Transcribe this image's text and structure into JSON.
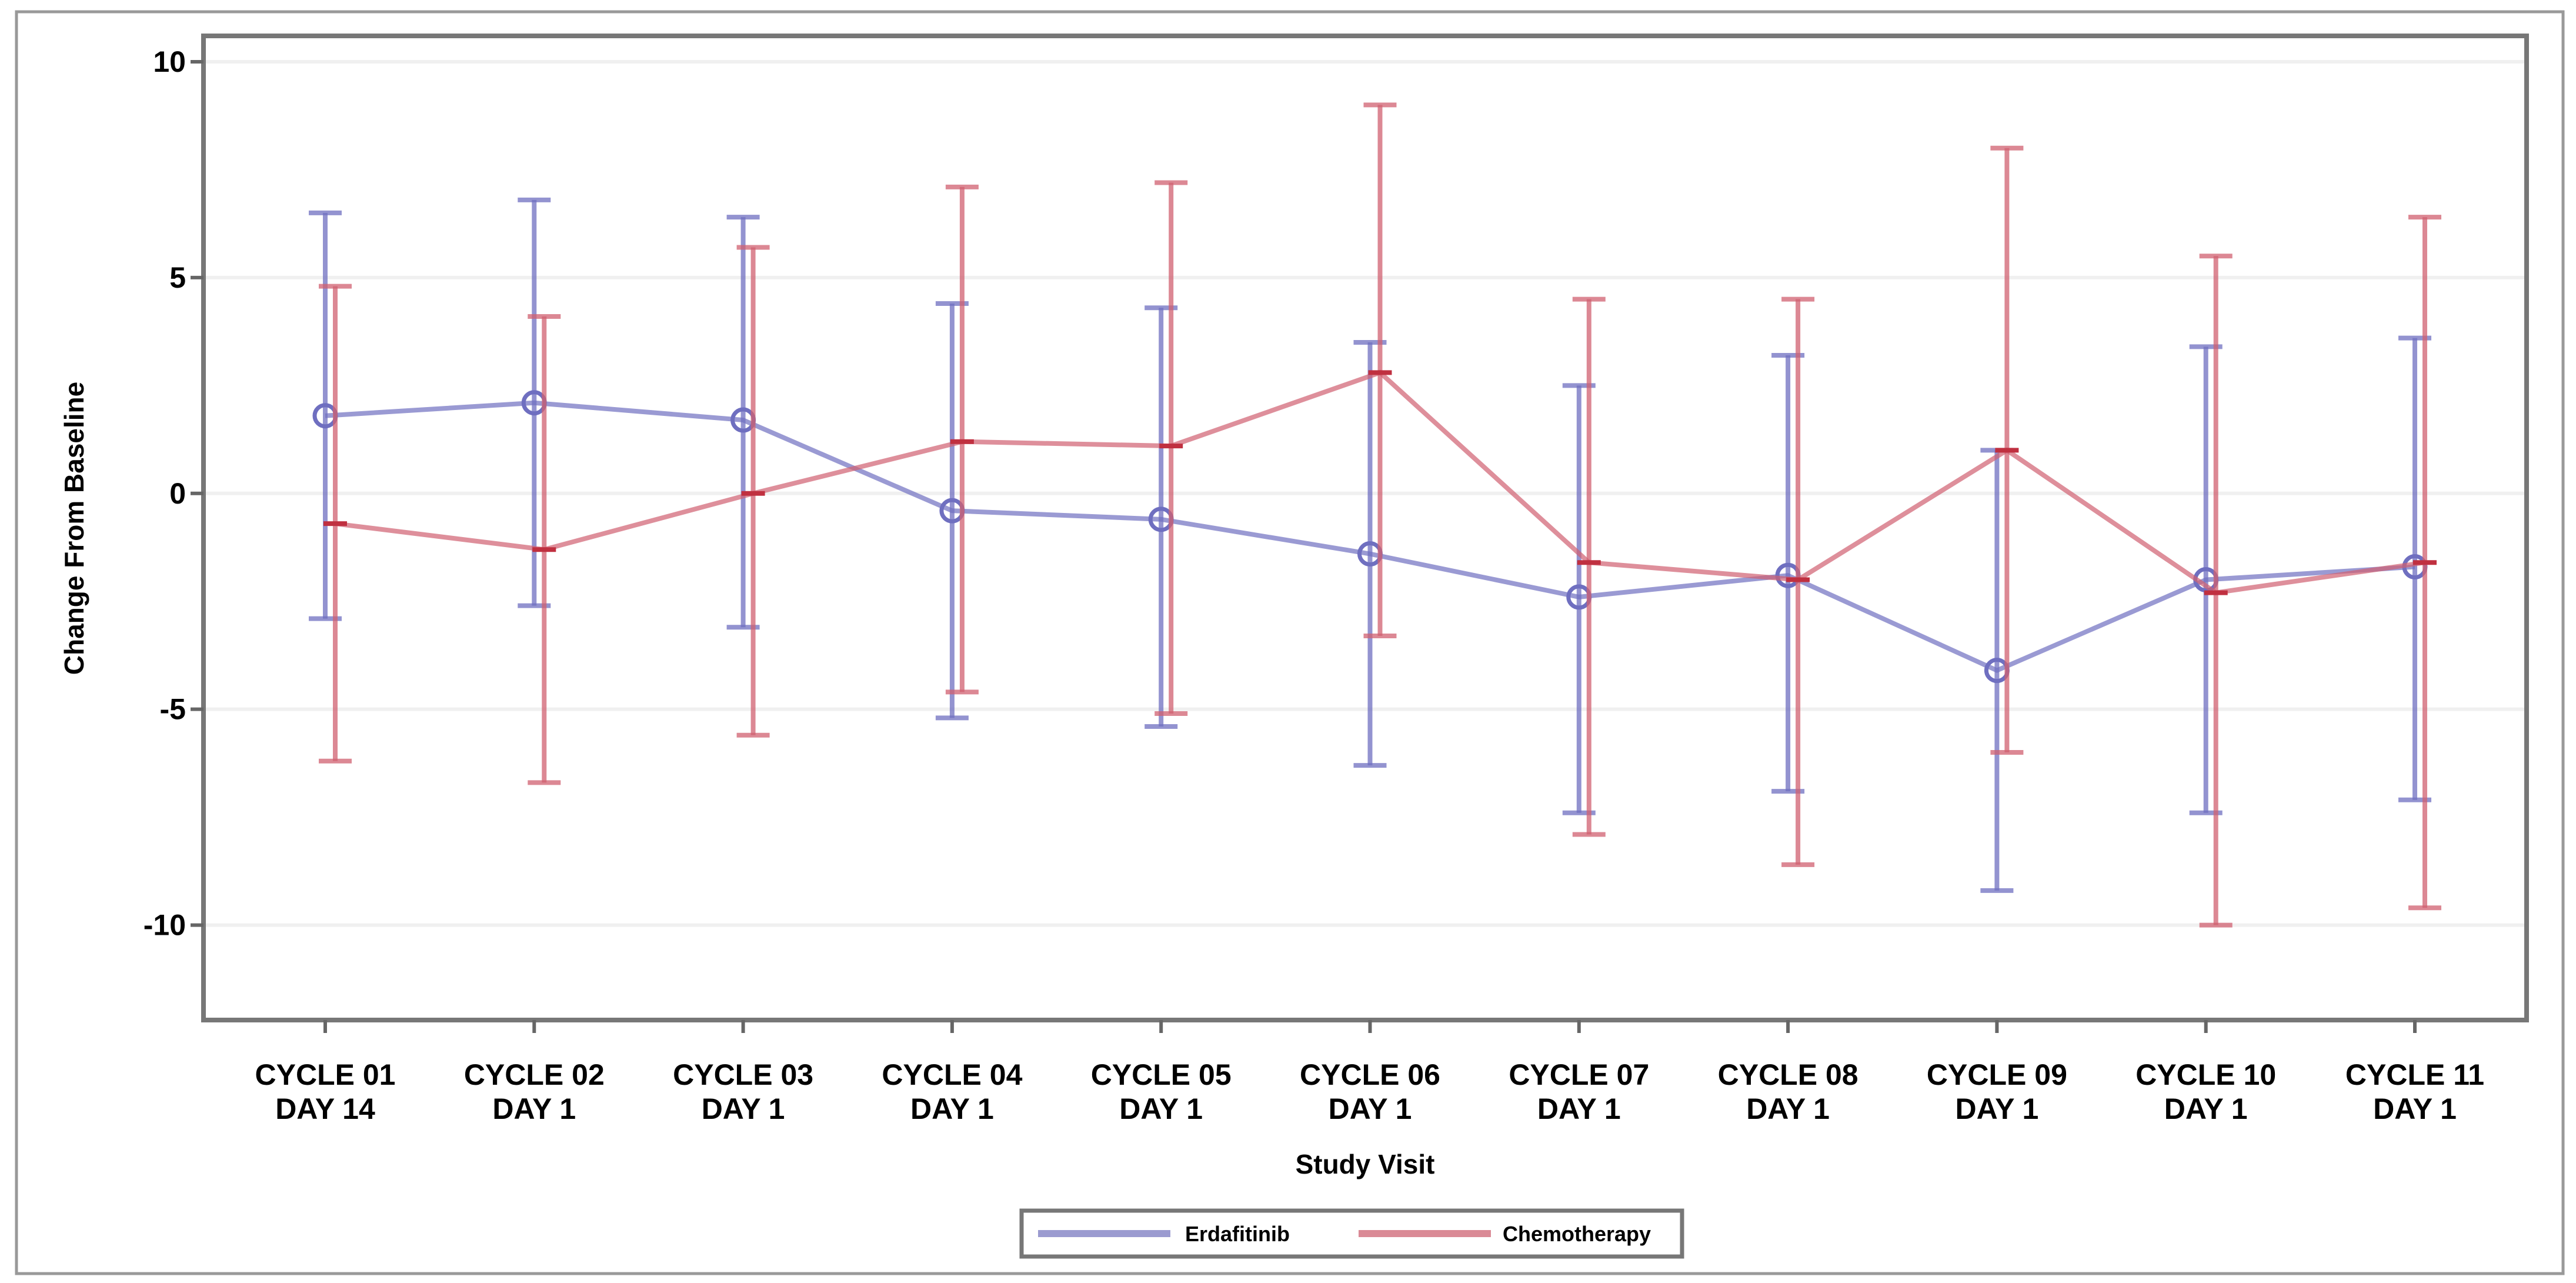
{
  "chart_data": {
    "type": "line",
    "title": "",
    "xlabel": "Study Visit",
    "ylabel": "Change From Baseline",
    "ylim": [
      -12.2,
      10.6
    ],
    "yticks": [
      10,
      5,
      0,
      -5,
      -10
    ],
    "grid": true,
    "legend_placement": "bottom-center",
    "categories": [
      [
        "CYCLE 01",
        "DAY 14"
      ],
      [
        "CYCLE 02",
        "DAY 1"
      ],
      [
        "CYCLE 03",
        "DAY 1"
      ],
      [
        "CYCLE 04",
        "DAY 1"
      ],
      [
        "CYCLE 05",
        "DAY 1"
      ],
      [
        "CYCLE 06",
        "DAY 1"
      ],
      [
        "CYCLE 07",
        "DAY 1"
      ],
      [
        "CYCLE 08",
        "DAY 1"
      ],
      [
        "CYCLE 09",
        "DAY 1"
      ],
      [
        "CYCLE 10",
        "DAY 1"
      ],
      [
        "CYCLE 11",
        "DAY 1"
      ]
    ],
    "series": [
      {
        "name": "Erdafitinib",
        "color": "#6f6fc0",
        "values": [
          1.8,
          2.1,
          1.7,
          -0.4,
          -0.6,
          -1.4,
          -2.4,
          -1.9,
          -4.1,
          -2.0,
          -1.7
        ],
        "upper": [
          6.5,
          6.8,
          6.4,
          4.4,
          4.3,
          3.5,
          2.5,
          3.2,
          1.0,
          3.4,
          3.6
        ],
        "lower": [
          -2.9,
          -2.6,
          -3.1,
          -5.2,
          -5.4,
          -6.3,
          -7.4,
          -6.9,
          -9.2,
          -7.4,
          -7.1
        ]
      },
      {
        "name": "Chemotherapy",
        "color": "#d06070",
        "values": [
          -0.7,
          -1.3,
          0.0,
          1.2,
          1.1,
          2.8,
          -1.6,
          -2.0,
          1.0,
          -2.3,
          -1.6
        ],
        "upper": [
          4.8,
          4.1,
          5.7,
          7.1,
          7.2,
          9.0,
          4.5,
          4.5,
          8.0,
          5.5,
          6.4
        ],
        "lower": [
          -6.2,
          -6.7,
          -5.6,
          -4.6,
          -5.1,
          -3.3,
          -7.9,
          -8.6,
          -6.0,
          -10.0,
          -9.6
        ]
      }
    ]
  }
}
